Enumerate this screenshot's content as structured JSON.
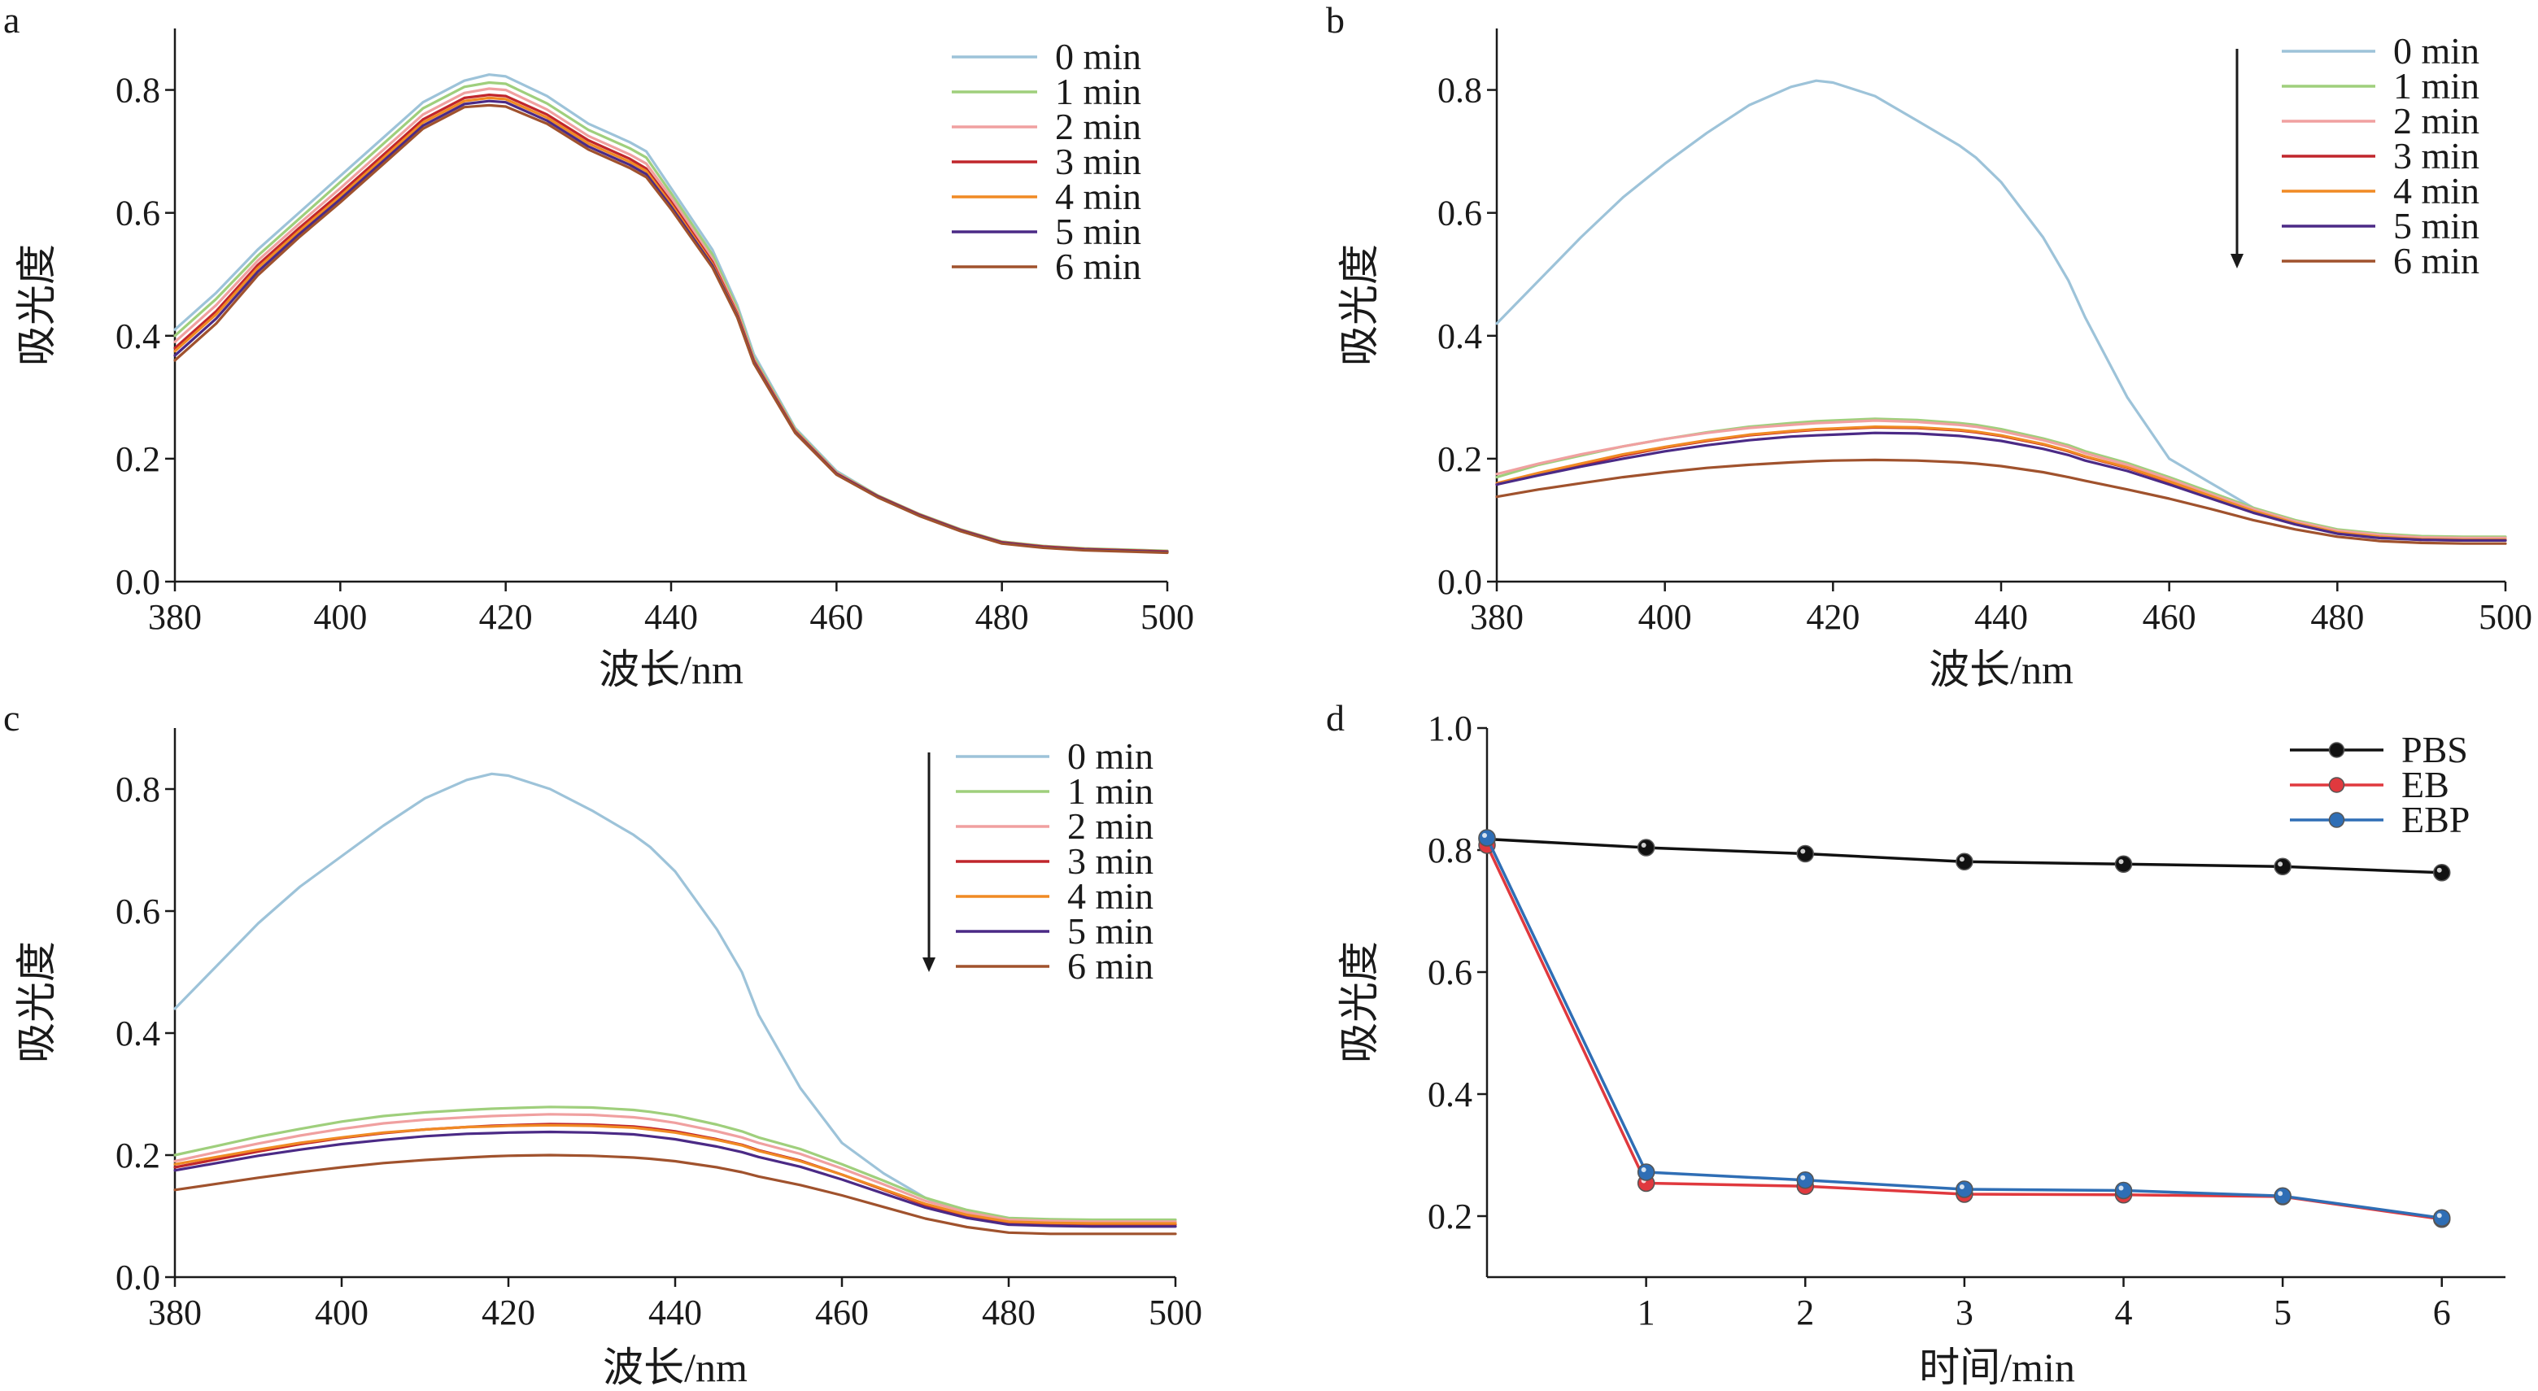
{
  "chart_data": [
    {
      "type": "line",
      "panel_label": "a",
      "xlabel": "波长/nm",
      "ylabel": "吸光度",
      "xlim": [
        380,
        500
      ],
      "ylim": [
        0,
        0.9
      ],
      "xticks": [
        "380",
        "400",
        "420",
        "440",
        "460",
        "480",
        "500"
      ],
      "yticks": [
        "0.0",
        "0.2",
        "0.4",
        "0.6",
        "0.8"
      ],
      "legend_position": "top-right",
      "arrow": false,
      "x": [
        380,
        385,
        390,
        395,
        400,
        405,
        410,
        415,
        418,
        420,
        425,
        430,
        435,
        437,
        440,
        445,
        448,
        450,
        455,
        460,
        465,
        470,
        475,
        480,
        485,
        490,
        495,
        500
      ],
      "series": [
        {
          "name": "0 min",
          "color": "#9dc3d9",
          "values": [
            0.41,
            0.47,
            0.54,
            0.6,
            0.66,
            0.72,
            0.78,
            0.815,
            0.825,
            0.822,
            0.79,
            0.745,
            0.715,
            0.7,
            0.64,
            0.54,
            0.45,
            0.37,
            0.25,
            0.18,
            0.14,
            0.11,
            0.085,
            0.065,
            0.058,
            0.054,
            0.052,
            0.05
          ]
        },
        {
          "name": "1 min",
          "color": "#9fcf7c",
          "values": [
            0.4,
            0.46,
            0.53,
            0.59,
            0.65,
            0.71,
            0.77,
            0.805,
            0.812,
            0.81,
            0.778,
            0.735,
            0.705,
            0.69,
            0.632,
            0.532,
            0.445,
            0.365,
            0.248,
            0.178,
            0.14,
            0.11,
            0.085,
            0.065,
            0.058,
            0.054,
            0.052,
            0.05
          ]
        },
        {
          "name": "2 min",
          "color": "#f0a0a0",
          "values": [
            0.39,
            0.45,
            0.522,
            0.582,
            0.64,
            0.7,
            0.76,
            0.795,
            0.802,
            0.8,
            0.768,
            0.725,
            0.695,
            0.68,
            0.625,
            0.525,
            0.44,
            0.362,
            0.246,
            0.177,
            0.139,
            0.109,
            0.084,
            0.064,
            0.057,
            0.053,
            0.051,
            0.049
          ]
        },
        {
          "name": "3 min",
          "color": "#c0262c",
          "values": [
            0.38,
            0.44,
            0.515,
            0.575,
            0.632,
            0.692,
            0.752,
            0.787,
            0.792,
            0.79,
            0.76,
            0.718,
            0.688,
            0.672,
            0.618,
            0.52,
            0.436,
            0.36,
            0.245,
            0.176,
            0.139,
            0.109,
            0.084,
            0.064,
            0.057,
            0.053,
            0.051,
            0.049
          ]
        },
        {
          "name": "4 min",
          "color": "#f08a24",
          "values": [
            0.375,
            0.435,
            0.51,
            0.57,
            0.627,
            0.687,
            0.747,
            0.782,
            0.787,
            0.785,
            0.755,
            0.713,
            0.683,
            0.668,
            0.614,
            0.517,
            0.434,
            0.358,
            0.244,
            0.175,
            0.138,
            0.108,
            0.083,
            0.063,
            0.056,
            0.052,
            0.05,
            0.048
          ]
        },
        {
          "name": "5 min",
          "color": "#4b2a86",
          "values": [
            0.368,
            0.428,
            0.504,
            0.565,
            0.622,
            0.682,
            0.742,
            0.777,
            0.782,
            0.78,
            0.75,
            0.708,
            0.678,
            0.663,
            0.61,
            0.514,
            0.432,
            0.357,
            0.243,
            0.175,
            0.138,
            0.108,
            0.083,
            0.063,
            0.056,
            0.052,
            0.05,
            0.048
          ]
        },
        {
          "name": "6 min",
          "color": "#a0522d",
          "values": [
            0.36,
            0.42,
            0.498,
            0.56,
            0.617,
            0.677,
            0.737,
            0.772,
            0.775,
            0.773,
            0.745,
            0.703,
            0.673,
            0.658,
            0.606,
            0.511,
            0.43,
            0.355,
            0.242,
            0.174,
            0.137,
            0.107,
            0.082,
            0.062,
            0.055,
            0.051,
            0.049,
            0.047
          ]
        }
      ]
    },
    {
      "type": "line",
      "panel_label": "b",
      "xlabel": "波长/nm",
      "ylabel": "吸光度",
      "xlim": [
        380,
        500
      ],
      "ylim": [
        0,
        0.9
      ],
      "xticks": [
        "380",
        "400",
        "420",
        "440",
        "460",
        "480",
        "500"
      ],
      "yticks": [
        "0.0",
        "0.2",
        "0.4",
        "0.6",
        "0.8"
      ],
      "legend_position": "top-right",
      "arrow": true,
      "x": [
        380,
        385,
        390,
        395,
        400,
        405,
        410,
        415,
        418,
        420,
        425,
        430,
        435,
        437,
        440,
        445,
        448,
        450,
        455,
        460,
        465,
        470,
        475,
        480,
        485,
        490,
        495,
        500
      ],
      "series": [
        {
          "name": "0 min",
          "color": "#9dc3d9",
          "values": [
            0.42,
            0.49,
            0.56,
            0.625,
            0.68,
            0.73,
            0.775,
            0.805,
            0.815,
            0.812,
            0.79,
            0.75,
            0.71,
            0.69,
            0.65,
            0.56,
            0.49,
            0.43,
            0.3,
            0.2,
            0.16,
            0.12,
            0.095,
            0.08,
            0.075,
            0.072,
            0.07,
            0.07
          ]
        },
        {
          "name": "1 min",
          "color": "#9fcf7c",
          "values": [
            0.17,
            0.19,
            0.205,
            0.22,
            0.232,
            0.243,
            0.252,
            0.258,
            0.261,
            0.262,
            0.265,
            0.263,
            0.258,
            0.255,
            0.248,
            0.233,
            0.222,
            0.212,
            0.193,
            0.17,
            0.145,
            0.12,
            0.1,
            0.085,
            0.078,
            0.074,
            0.073,
            0.073
          ]
        },
        {
          "name": "2 min",
          "color": "#f0a0a0",
          "values": [
            0.175,
            0.192,
            0.207,
            0.22,
            0.232,
            0.242,
            0.25,
            0.255,
            0.258,
            0.259,
            0.262,
            0.26,
            0.255,
            0.252,
            0.245,
            0.23,
            0.219,
            0.209,
            0.19,
            0.167,
            0.142,
            0.118,
            0.098,
            0.083,
            0.076,
            0.072,
            0.071,
            0.071
          ]
        },
        {
          "name": "3 min",
          "color": "#c0262c",
          "values": [
            0.158,
            0.175,
            0.19,
            0.205,
            0.218,
            0.229,
            0.238,
            0.244,
            0.247,
            0.248,
            0.251,
            0.25,
            0.246,
            0.243,
            0.237,
            0.223,
            0.212,
            0.203,
            0.185,
            0.162,
            0.138,
            0.114,
            0.094,
            0.079,
            0.072,
            0.068,
            0.067,
            0.067
          ]
        },
        {
          "name": "4 min",
          "color": "#f08a24",
          "values": [
            0.16,
            0.177,
            0.192,
            0.207,
            0.219,
            0.23,
            0.239,
            0.245,
            0.248,
            0.249,
            0.252,
            0.251,
            0.247,
            0.244,
            0.238,
            0.224,
            0.213,
            0.204,
            0.186,
            0.163,
            0.139,
            0.115,
            0.095,
            0.08,
            0.073,
            0.069,
            0.068,
            0.068
          ]
        },
        {
          "name": "5 min",
          "color": "#4b2a86",
          "values": [
            0.158,
            0.173,
            0.187,
            0.2,
            0.212,
            0.222,
            0.23,
            0.236,
            0.238,
            0.239,
            0.242,
            0.241,
            0.237,
            0.234,
            0.229,
            0.216,
            0.206,
            0.197,
            0.18,
            0.158,
            0.135,
            0.112,
            0.093,
            0.078,
            0.071,
            0.068,
            0.067,
            0.067
          ]
        },
        {
          "name": "6 min",
          "color": "#a0522d",
          "values": [
            0.138,
            0.15,
            0.16,
            0.17,
            0.178,
            0.185,
            0.19,
            0.194,
            0.196,
            0.197,
            0.198,
            0.197,
            0.194,
            0.192,
            0.188,
            0.178,
            0.17,
            0.164,
            0.15,
            0.135,
            0.118,
            0.1,
            0.085,
            0.073,
            0.066,
            0.063,
            0.062,
            0.062
          ]
        }
      ]
    },
    {
      "type": "line",
      "panel_label": "c",
      "xlabel": "波长/nm",
      "ylabel": "吸光度",
      "xlim": [
        380,
        500
      ],
      "ylim": [
        0,
        0.9
      ],
      "xticks": [
        "380",
        "400",
        "420",
        "440",
        "460",
        "480",
        "500"
      ],
      "yticks": [
        "0.0",
        "0.2",
        "0.4",
        "0.6",
        "0.8"
      ],
      "legend_position": "top-right",
      "arrow": true,
      "x": [
        380,
        385,
        390,
        395,
        400,
        405,
        410,
        415,
        418,
        420,
        425,
        430,
        435,
        437,
        440,
        445,
        448,
        450,
        455,
        460,
        465,
        470,
        475,
        480,
        485,
        490,
        495,
        500
      ],
      "series": [
        {
          "name": "0 min",
          "color": "#9dc3d9",
          "values": [
            0.44,
            0.51,
            0.58,
            0.64,
            0.69,
            0.74,
            0.785,
            0.815,
            0.825,
            0.822,
            0.8,
            0.765,
            0.725,
            0.705,
            0.665,
            0.57,
            0.5,
            0.43,
            0.31,
            0.22,
            0.17,
            0.13,
            0.105,
            0.095,
            0.092,
            0.09,
            0.09,
            0.09
          ]
        },
        {
          "name": "1 min",
          "color": "#9fcf7c",
          "values": [
            0.2,
            0.215,
            0.23,
            0.243,
            0.255,
            0.264,
            0.27,
            0.274,
            0.276,
            0.277,
            0.279,
            0.278,
            0.274,
            0.271,
            0.265,
            0.25,
            0.239,
            0.229,
            0.21,
            0.185,
            0.158,
            0.13,
            0.11,
            0.097,
            0.095,
            0.094,
            0.094,
            0.094
          ]
        },
        {
          "name": "2 min",
          "color": "#f0a0a0",
          "values": [
            0.19,
            0.205,
            0.219,
            0.232,
            0.243,
            0.252,
            0.258,
            0.262,
            0.264,
            0.265,
            0.267,
            0.266,
            0.262,
            0.259,
            0.253,
            0.239,
            0.229,
            0.22,
            0.202,
            0.178,
            0.152,
            0.125,
            0.106,
            0.094,
            0.092,
            0.091,
            0.091,
            0.091
          ]
        },
        {
          "name": "3 min",
          "color": "#c0262c",
          "values": [
            0.18,
            0.193,
            0.206,
            0.218,
            0.228,
            0.236,
            0.242,
            0.246,
            0.248,
            0.249,
            0.251,
            0.25,
            0.247,
            0.244,
            0.239,
            0.226,
            0.217,
            0.208,
            0.191,
            0.168,
            0.143,
            0.118,
            0.1,
            0.089,
            0.087,
            0.086,
            0.086,
            0.086
          ]
        },
        {
          "name": "4 min",
          "color": "#f08a24",
          "values": [
            0.185,
            0.197,
            0.209,
            0.22,
            0.229,
            0.237,
            0.242,
            0.246,
            0.247,
            0.248,
            0.249,
            0.248,
            0.245,
            0.242,
            0.237,
            0.225,
            0.216,
            0.207,
            0.19,
            0.168,
            0.144,
            0.12,
            0.102,
            0.091,
            0.089,
            0.088,
            0.088,
            0.088
          ]
        },
        {
          "name": "5 min",
          "color": "#4b2a86",
          "values": [
            0.175,
            0.187,
            0.199,
            0.209,
            0.218,
            0.225,
            0.231,
            0.235,
            0.236,
            0.237,
            0.238,
            0.237,
            0.234,
            0.231,
            0.226,
            0.214,
            0.205,
            0.197,
            0.181,
            0.16,
            0.137,
            0.114,
            0.097,
            0.086,
            0.084,
            0.083,
            0.083,
            0.083
          ]
        },
        {
          "name": "6 min",
          "color": "#a0522d",
          "values": [
            0.143,
            0.153,
            0.163,
            0.172,
            0.18,
            0.187,
            0.192,
            0.196,
            0.198,
            0.199,
            0.2,
            0.199,
            0.196,
            0.194,
            0.19,
            0.18,
            0.172,
            0.165,
            0.151,
            0.134,
            0.115,
            0.096,
            0.082,
            0.073,
            0.071,
            0.071,
            0.071,
            0.071
          ]
        }
      ]
    },
    {
      "type": "line",
      "panel_label": "d",
      "xlabel": "时间/min",
      "ylabel": "吸光度",
      "xlim": [
        0,
        6.4
      ],
      "ylim": [
        0.1,
        1.0
      ],
      "xticks": [
        "1",
        "2",
        "3",
        "4",
        "5",
        "6"
      ],
      "yticks": [
        "0.2",
        "0.4",
        "0.6",
        "0.8",
        "1.0"
      ],
      "legend_position": "top-right",
      "arrow": false,
      "x": [
        0,
        1,
        2,
        3,
        4,
        5,
        6
      ],
      "series": [
        {
          "name": "PBS",
          "color": "#111111",
          "values": [
            0.818,
            0.804,
            0.794,
            0.781,
            0.777,
            0.773,
            0.763
          ]
        },
        {
          "name": "EB",
          "color": "#e0393e",
          "values": [
            0.808,
            0.254,
            0.249,
            0.236,
            0.235,
            0.232,
            0.195
          ]
        },
        {
          "name": "EBP",
          "color": "#2f6eb5",
          "values": [
            0.82,
            0.272,
            0.259,
            0.244,
            0.242,
            0.233,
            0.197
          ]
        }
      ]
    }
  ]
}
